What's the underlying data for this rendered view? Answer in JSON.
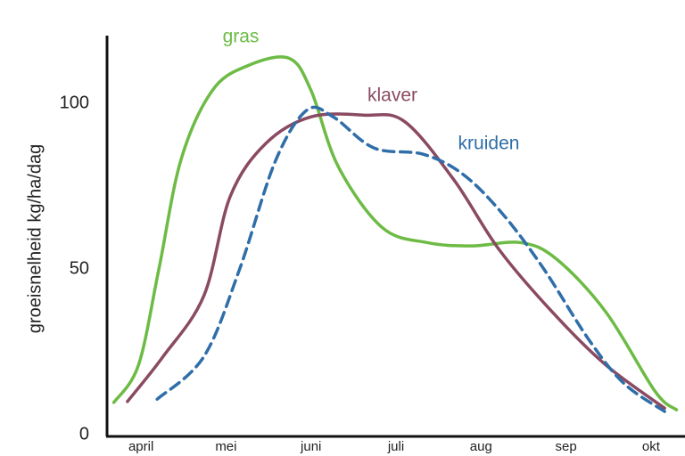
{
  "chart_data": {
    "type": "line",
    "y_label": "groeisnelheid kg/ha/dag",
    "xlim": [
      3.6,
      10.4
    ],
    "xticks": [
      {
        "value": 4,
        "label": "april"
      },
      {
        "value": 5,
        "label": "mei"
      },
      {
        "value": 6,
        "label": "juni"
      },
      {
        "value": 7,
        "label": "juli"
      },
      {
        "value": 8,
        "label": "aug"
      },
      {
        "value": 9,
        "label": "sep"
      },
      {
        "value": 10,
        "label": "okt"
      }
    ],
    "ylim": [
      0,
      120
    ],
    "yticks": [
      0,
      50,
      100
    ],
    "series": [
      {
        "name": "gras",
        "color": "#6dbb45",
        "dashed": false,
        "x": [
          3.68,
          3.97,
          4.21,
          4.47,
          4.84,
          5.26,
          5.74,
          6.0,
          6.32,
          6.84,
          7.37,
          7.89,
          8.47,
          8.89,
          9.47,
          10.05,
          10.3
        ],
        "values": [
          9.7,
          21,
          50,
          83,
          104,
          111.5,
          113.7,
          104,
          81,
          62.5,
          58,
          57,
          58,
          53,
          37,
          13,
          7.5
        ]
      },
      {
        "name": "klaver",
        "color": "#8a4a62",
        "dashed": false,
        "x": [
          3.84,
          4.26,
          4.74,
          5.05,
          5.47,
          6.0,
          6.63,
          7.1,
          7.68,
          8.21,
          8.84,
          9.47,
          10.16
        ],
        "values": [
          10,
          23.6,
          42,
          72,
          88,
          96,
          96.5,
          94.6,
          77,
          56,
          37,
          21,
          8
        ]
      },
      {
        "name": "kruiden",
        "color": "#2f6ea8",
        "dashed": true,
        "x": [
          4.19,
          4.74,
          5.16,
          5.58,
          5.95,
          6.26,
          6.74,
          7.32,
          7.79,
          8.26,
          8.74,
          9.26,
          9.68,
          10.16
        ],
        "values": [
          10.7,
          23.6,
          50,
          82.6,
          98,
          96,
          86.6,
          84.7,
          78.6,
          66.5,
          50,
          29,
          15.5,
          7
        ]
      }
    ]
  }
}
